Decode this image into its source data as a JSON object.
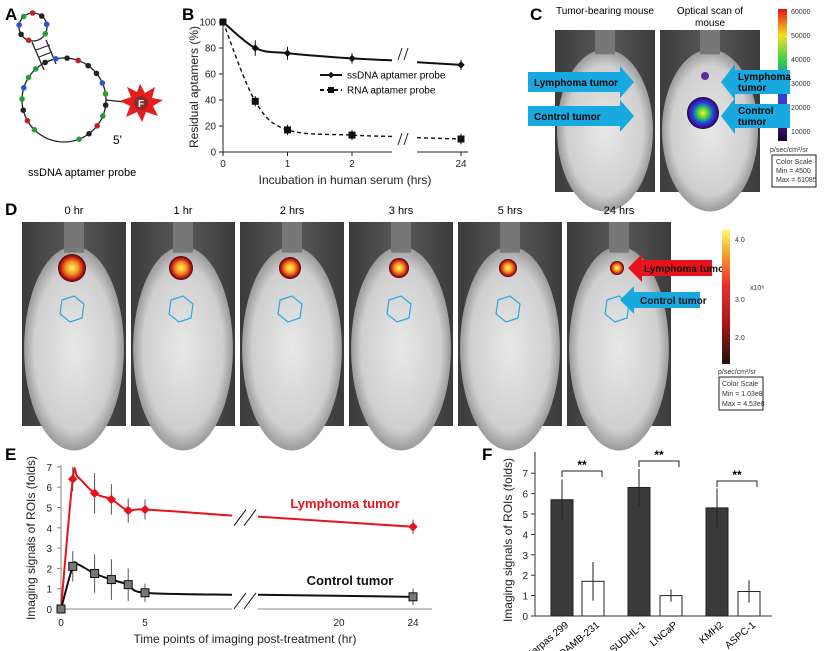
{
  "panels": {
    "A": {
      "label": "A",
      "caption": "ssDNA aptamer probe",
      "fluor_label": "F",
      "end_label": "5'"
    },
    "B": {
      "label": "B"
    },
    "C": {
      "label": "C",
      "title_left": "Tumor-bearing mouse",
      "title_left2": "",
      "title_right": "Optical scan of",
      "title_right2": "mouse",
      "lymphoma_label": "Lymphoma tumor",
      "control_label": "Control tumor",
      "scale_ticks": [
        "60000",
        "50000",
        "40000",
        "30000",
        "20000",
        "10000"
      ],
      "unit": "p/sec/cm²/sr",
      "scale_box": [
        "Color Scale",
        "Min = 4500",
        "Max = 61085"
      ]
    },
    "D": {
      "label": "D",
      "times": [
        "0 hr",
        "1 hr",
        "2 hrs",
        "3 hrs",
        "5 hrs",
        "24 hrs"
      ],
      "lymphoma_label": "Lymphoma tumor",
      "control_label": "Control tumor",
      "scale_ticks": [
        "4.0",
        "3.0",
        "2.0"
      ],
      "exponent": "x10⁸",
      "unit": "p/sec/cm²/sr",
      "scale_box": [
        "Color Scale",
        "Min = 1.03e8",
        "Max = 4.53e8"
      ]
    },
    "E": {
      "label": "E"
    },
    "F": {
      "label": "F",
      "sig": "**"
    }
  },
  "colors": {
    "cyan_arrow": "#19a9e1",
    "red_arrow": "#e8121a",
    "lymphoma": "#e8121a",
    "control": "#111111",
    "dark_bar": "#3a3a3a"
  },
  "chart_data": [
    {
      "id": "B",
      "type": "line",
      "xlabel": "Incubation in human serum (hrs)",
      "ylabel": "Residual aptamers (%)",
      "ylim": [
        0,
        100
      ],
      "yticks": [
        "0",
        "20",
        "40",
        "60",
        "80",
        "100"
      ],
      "xticks": [
        "0",
        "1",
        "2",
        "24"
      ],
      "axis_break": true,
      "legend": "center-right",
      "series": [
        {
          "name": "ssDNA aptamer probe",
          "marker": "diamond",
          "style": "solid",
          "x": [
            0,
            0.5,
            1,
            2,
            24
          ],
          "y": [
            100,
            80,
            76,
            72,
            67
          ],
          "err": [
            0,
            6,
            5,
            4,
            4
          ]
        },
        {
          "name": "RNA aptamer probe",
          "marker": "square",
          "style": "dashed",
          "x": [
            0,
            0.5,
            1,
            2,
            24
          ],
          "y": [
            100,
            39,
            17,
            13,
            10
          ],
          "err": [
            0,
            4,
            4,
            4,
            4
          ]
        }
      ]
    },
    {
      "id": "E",
      "type": "line",
      "xlabel": "Time points of imaging post-treatment (hr)",
      "ylabel": "Imaging signals of ROIs (folds)",
      "ylim": [
        0,
        7
      ],
      "yticks": [
        "0",
        "1",
        "2",
        "3",
        "4",
        "5",
        "6",
        "7"
      ],
      "xticks": [
        "0",
        "5",
        "20",
        "24"
      ],
      "axis_break": true,
      "series": [
        {
          "name": "Lymphoma tumor",
          "color": "#e8121a",
          "marker": "diamond",
          "x": [
            0,
            0.7,
            2,
            3,
            4,
            5,
            24
          ],
          "y": [
            0,
            6.4,
            5.7,
            5.4,
            4.85,
            4.9,
            4.05
          ],
          "err": [
            0,
            0.6,
            1.0,
            0.75,
            0.6,
            0.5,
            0.35
          ]
        },
        {
          "name": "Control tumor",
          "color": "#111111",
          "marker": "square",
          "x": [
            0,
            0.7,
            2,
            3,
            4,
            5,
            24
          ],
          "y": [
            0,
            2.1,
            1.75,
            1.45,
            1.2,
            0.8,
            0.6
          ],
          "err": [
            0,
            0.75,
            0.95,
            1.0,
            0.8,
            0.45,
            0.4
          ]
        }
      ]
    },
    {
      "id": "F",
      "type": "bar",
      "ylabel": "Imaging signals of ROIs (folds)",
      "ylim": [
        0,
        7
      ],
      "yticks": [
        "0",
        "1",
        "2",
        "3",
        "4",
        "5",
        "6",
        "7"
      ],
      "categories": [
        "Karpas 299",
        "MDAMB-231",
        "SUDHL-1",
        "LNCaP",
        "KMH2",
        "ASPC-1"
      ],
      "values": [
        5.7,
        1.7,
        6.3,
        1.0,
        5.3,
        1.2
      ],
      "err": [
        1.0,
        0.95,
        0.9,
        0.3,
        0.95,
        0.55
      ],
      "fill": [
        "dark",
        "white",
        "dark",
        "white",
        "dark",
        "white"
      ],
      "significance": [
        "**",
        "**",
        "**"
      ]
    }
  ]
}
